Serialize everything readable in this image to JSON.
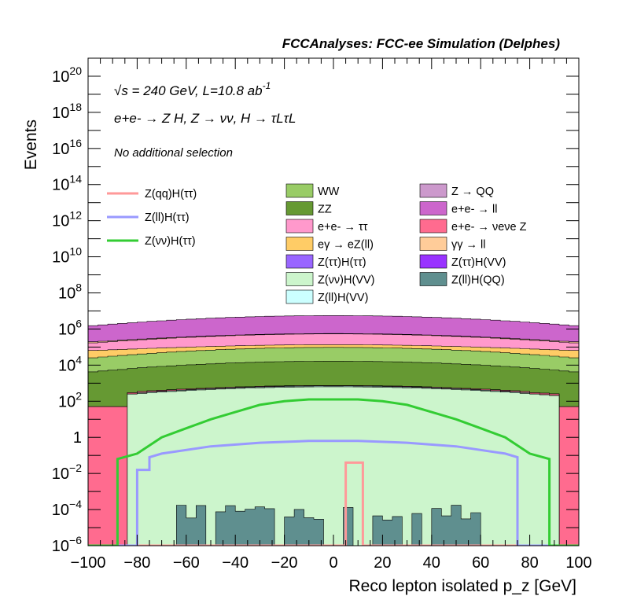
{
  "chart_data": {
    "type": "area",
    "title": "FCCAnalyses: FCC-ee Simulation (Delphes)",
    "xlabel": "Reco lepton isolated p_z [GeV]",
    "ylabel": "Events",
    "xlim": [
      -100,
      100
    ],
    "ylim": [
      1e-06,
      1e+21
    ],
    "yscale": "log",
    "xticks": [
      -100,
      -80,
      -60,
      -40,
      -20,
      0,
      20,
      40,
      60,
      80,
      100
    ],
    "xtick_labels": [
      "−100",
      "−80",
      "−60",
      "−40",
      "−20",
      "0",
      "20",
      "40",
      "60",
      "80",
      "100"
    ],
    "ytick_labels": [
      {
        "exp": -6,
        "base": "10",
        "sup": "−6"
      },
      {
        "exp": -4,
        "base": "10",
        "sup": "−4"
      },
      {
        "exp": -2,
        "base": "10",
        "sup": "−2"
      },
      {
        "exp": 0,
        "base": "1",
        "sup": ""
      },
      {
        "exp": 2,
        "base": "10",
        "sup": "2"
      },
      {
        "exp": 4,
        "base": "10",
        "sup": "4"
      },
      {
        "exp": 6,
        "base": "10",
        "sup": "6"
      },
      {
        "exp": 8,
        "base": "10",
        "sup": "8"
      },
      {
        "exp": 10,
        "base": "10",
        "sup": "10"
      },
      {
        "exp": 12,
        "base": "10",
        "sup": "12"
      },
      {
        "exp": 14,
        "base": "10",
        "sup": "14"
      },
      {
        "exp": 16,
        "base": "10",
        "sup": "16"
      },
      {
        "exp": 18,
        "base": "10",
        "sup": "18"
      },
      {
        "exp": 20,
        "base": "10",
        "sup": "20"
      }
    ],
    "annotations": {
      "energy": "√s = 240 GeV, L=10.8 ab",
      "energy_sup": "-1",
      "process": "e+e- → Z H, Z → νν, H → τLτL",
      "selection": "No additional selection"
    },
    "legend_placement": "upper-left inside plot",
    "stack_profiles": [
      {
        "name": "Z(ll)H(QQ)",
        "color": "#5f8f8f",
        "support": [
          -65,
          60
        ],
        "profile": "sparse",
        "level": -4.6
      },
      {
        "name": "Z(νν)H(VV)",
        "color": "#ccf5cc",
        "support": [
          -85,
          92
        ],
        "profile": "dome",
        "level": 2.2
      },
      {
        "name": "Z(ll)H(VV)",
        "color": "#ccffff",
        "support": [
          -80,
          78
        ],
        "profile": "dome",
        "level": 1.2
      },
      {
        "name": "Z(ττ)H(VV)",
        "color": "#9933ff",
        "support": [
          -55,
          55
        ],
        "profile": "sparse",
        "level": -1.3
      },
      {
        "name": "Z(ττ)H(ττ)",
        "color": "#9966ff",
        "support": [
          -70,
          60
        ],
        "profile": "sparse",
        "level": -1.9
      },
      {
        "name": "e+e- → νeνe Z",
        "color": "#ff6b8f",
        "support": [
          -100,
          100
        ],
        "profile": "flat",
        "level": 1.7
      },
      {
        "name": "Z → QQ",
        "color": "#cc99cc",
        "support": [
          -30,
          40
        ],
        "profile": "bumps",
        "level": 0.3
      },
      {
        "name": "ZZ",
        "color": "#669933",
        "support": [
          -100,
          100
        ],
        "profile": "dome",
        "level": 3.6
      },
      {
        "name": "WW",
        "color": "#99cc66",
        "support": [
          -100,
          100
        ],
        "profile": "dome",
        "level": 4.3
      },
      {
        "name": "eγ → eZ(ll)",
        "color": "#ffcc66",
        "support": [
          -100,
          100
        ],
        "profile": "flat",
        "level": 4.6
      },
      {
        "name": "e+e- → ττ",
        "color": "#ff99cc",
        "support": [
          -100,
          100
        ],
        "profile": "dome",
        "level": 5.0
      },
      {
        "name": "γγ → ll",
        "color": "#ffcc99",
        "support": [
          -100,
          100
        ],
        "profile": "flat",
        "level": 4.4
      },
      {
        "name": "e+e- → ll",
        "color": "#cc66cc",
        "support": [
          -100,
          100
        ],
        "profile": "dome",
        "level": 6.1
      }
    ],
    "signal_lines": [
      {
        "name": "Z(qq)H(ττ)",
        "color": "#ff9999",
        "x": [
          -100,
          -85,
          -85,
          5,
          5,
          12,
          12,
          100
        ],
        "y": [
          -6,
          -6,
          -6,
          -6,
          -1.4,
          -1.4,
          -6,
          -6
        ]
      },
      {
        "name": "Z(ll)H(ττ)",
        "color": "#9999ff",
        "x": [
          -100,
          -80,
          -80,
          -75,
          -75,
          -70,
          -50,
          -30,
          -10,
          10,
          30,
          50,
          70,
          75,
          75,
          80,
          100
        ],
        "y": [
          -6,
          -6,
          -1.8,
          -1.8,
          -1.1,
          -0.9,
          -0.5,
          -0.3,
          -0.2,
          -0.2,
          -0.3,
          -0.5,
          -0.9,
          -1.1,
          -6,
          -6,
          -6
        ]
      },
      {
        "name": "Z(νν)H(ττ)",
        "color": "#33cc33",
        "x": [
          -100,
          -88,
          -88,
          -80,
          -70,
          -60,
          -50,
          -40,
          -30,
          -20,
          -10,
          0,
          10,
          20,
          30,
          40,
          50,
          60,
          70,
          80,
          88,
          88,
          92,
          92,
          100
        ],
        "y": [
          -6,
          -6,
          -1.2,
          -0.9,
          0.0,
          0.5,
          1.0,
          1.4,
          1.8,
          2.0,
          2.1,
          2.1,
          2.1,
          2.0,
          1.8,
          1.4,
          1.0,
          0.5,
          0.0,
          -0.9,
          -1.2,
          -6,
          -6,
          -6,
          -6
        ]
      }
    ]
  },
  "legend": {
    "lines": [
      {
        "label": "Z(qq)H(ττ)",
        "color": "#ff9999"
      },
      {
        "label": "Z(ll)H(ττ)",
        "color": "#9999ff"
      },
      {
        "label": "Z(νν)H(ττ)",
        "color": "#33cc33"
      }
    ],
    "col1": [
      {
        "label": "WW",
        "color": "#99cc66"
      },
      {
        "label": "ZZ",
        "color": "#669933"
      },
      {
        "label": "e+e- → ττ",
        "color": "#ff99cc"
      },
      {
        "label": "eγ → eZ(ll)",
        "color": "#ffcc66"
      },
      {
        "label": "Z(ττ)H(ττ)",
        "color": "#9966ff"
      },
      {
        "label": "Z(νν)H(VV)",
        "color": "#ccf5cc"
      },
      {
        "label": "Z(ll)H(VV)",
        "color": "#ccffff"
      }
    ],
    "col2": [
      {
        "label": "Z → QQ",
        "color": "#cc99cc"
      },
      {
        "label": "e+e- → ll",
        "color": "#cc66cc"
      },
      {
        "label": "e+e- → νeνe Z",
        "color": "#ff6b8f"
      },
      {
        "label": "γγ → ll",
        "color": "#ffcc99"
      },
      {
        "label": "Z(ττ)H(VV)",
        "color": "#9933ff"
      },
      {
        "label": "Z(ll)H(QQ)",
        "color": "#5f8f8f"
      }
    ]
  }
}
